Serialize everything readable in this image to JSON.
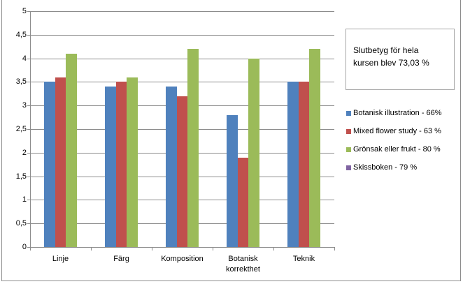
{
  "chart_data": {
    "type": "bar",
    "title": "",
    "xlabel": "",
    "ylabel": "",
    "ylim": [
      0,
      5
    ],
    "yticks": [
      "0",
      "0,5",
      "1",
      "1,5",
      "2",
      "2,5",
      "3",
      "3,5",
      "4",
      "4,5",
      "5"
    ],
    "grid": true,
    "legend_position": "right",
    "categories": [
      "Linje",
      "Färg",
      "Komposition",
      "Botanisk korrekthet",
      "Teknik"
    ],
    "category_labels": [
      [
        "Linje"
      ],
      [
        "Färg"
      ],
      [
        "Komposition"
      ],
      [
        "Botanisk",
        "korrekthet"
      ],
      [
        "Teknik"
      ]
    ],
    "series": [
      {
        "name": "Botanisk illustration  - 66%",
        "color": "#4F81BD",
        "values": [
          3.5,
          3.4,
          3.4,
          2.8,
          3.5
        ]
      },
      {
        "name": "Mixed flower study - 63 %",
        "color": "#C0504D",
        "values": [
          3.6,
          3.5,
          3.2,
          1.9,
          3.5
        ]
      },
      {
        "name": "Grönsak eller frukt - 80 %",
        "color": "#9BBB59",
        "values": [
          4.1,
          3.6,
          4.2,
          4.0,
          4.2
        ]
      },
      {
        "name": "Skissboken - 79 %",
        "color": "#8064A2",
        "values": [
          null,
          null,
          null,
          null,
          null
        ]
      }
    ],
    "annotations": [
      {
        "text_line1": "Slutbetyg för hela",
        "text_line2": "kursen blev 73,03 %"
      }
    ]
  }
}
